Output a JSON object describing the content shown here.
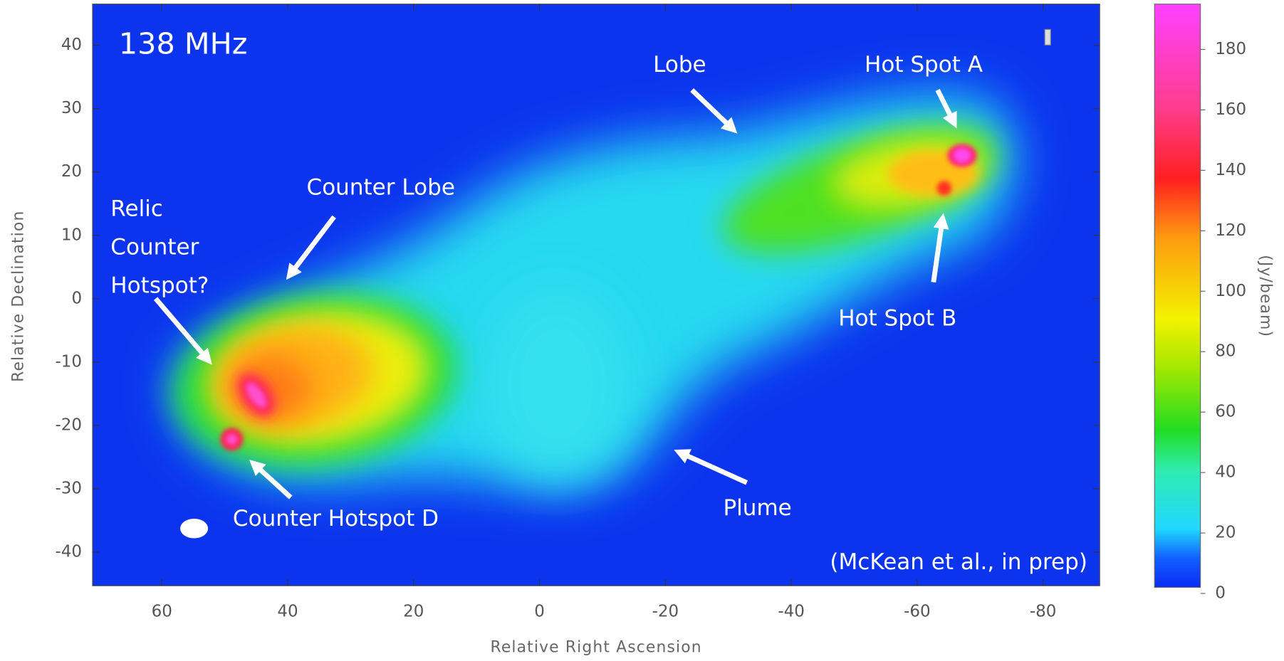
{
  "chart_data": {
    "type": "image",
    "title": "138 MHz",
    "xlabel": "Relative Right Ascension",
    "ylabel": "Relative Declination",
    "xlim": [
      71,
      -89
    ],
    "ylim": [
      -45.3,
      46.5
    ],
    "xticks": [
      60,
      40,
      20,
      0,
      -20,
      -40,
      -60,
      -80
    ],
    "yticks": [
      40,
      30,
      20,
      10,
      0,
      -10,
      -20,
      -30,
      -40
    ],
    "colorbar": {
      "label": "(Jy/beam)",
      "lim": [
        2,
        195
      ],
      "ticks": [
        0,
        20,
        40,
        60,
        80,
        100,
        120,
        140,
        160,
        180
      ]
    },
    "annotations": [
      "Lobe",
      "Hot Spot A",
      "Hot Spot B",
      "Counter Lobe",
      "Relic Counter Hotspot?",
      "Counter Hotspot D",
      "Plume"
    ],
    "credit": "(McKean et al., in prep)"
  }
}
